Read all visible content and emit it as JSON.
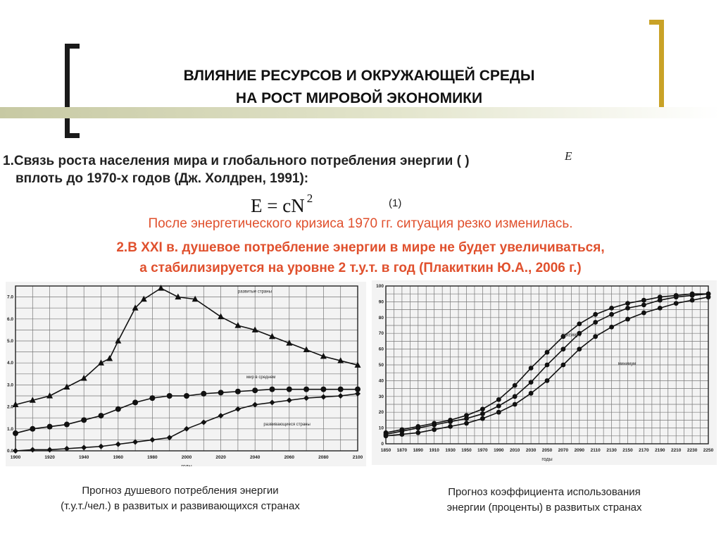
{
  "slide": {
    "title_line1": "ВЛИЯНИЕ РЕСУРСОВ И ОКРУЖАЮЩЕЙ СРЕДЫ",
    "title_line2": "НА РОСТ МИРОВОЙ ЭКОНОМИКИ",
    "point1_line1": "1.Связь роста населения мира и глобального потребления энергии (  )",
    "point1_line2": "вплоть до 1970-х годов (Дж. Холдрен, 1991):",
    "energy_var": "E",
    "formula_main": "E = cN",
    "formula_exp": "2",
    "formula_num": "(1)",
    "note_red": "После энергетического кризиса 1970 гг. ситуация резко изменилась.",
    "point2_line1": "2.В XXI в. душевое потребление энергии в мире не будет увеличиваться,",
    "point2_line2": "а стабилизируется на уровне 2 т.у.т. в год (Плакиткин Ю.А., 2006 г.)",
    "caption_left_line1": "Прогноз душевого потребления энергии",
    "caption_left_line2": "(т.у.т./чел.) в развитых и развивающихся странах",
    "caption_right_line1": "Прогноз коэффициента использования",
    "caption_right_line2": "энергии (проценты) в развитых странах",
    "bracket_left_color": "#1a1a1a",
    "bracket_right_color": "#c9a227",
    "red_color": "#e0502d"
  },
  "chart_data": [
    {
      "type": "line",
      "xlabel": "годы",
      "xlim": [
        1900,
        2100
      ],
      "ylim": [
        0,
        7.5
      ],
      "x_ticks": [
        1900,
        1920,
        1940,
        1960,
        1980,
        2000,
        2020,
        2040,
        2060,
        2080,
        2100
      ],
      "y_ticks": [
        0.0,
        1.0,
        2.0,
        3.0,
        4.0,
        5.0,
        6.0,
        7.0
      ],
      "grid": true,
      "series": [
        {
          "name": "развитые страны",
          "marker": "triangle",
          "x": [
            1900,
            1910,
            1920,
            1930,
            1940,
            1950,
            1955,
            1960,
            1970,
            1975,
            1985,
            1995,
            2005,
            2020,
            2030,
            2040,
            2050,
            2060,
            2070,
            2080,
            2090,
            2100
          ],
          "y": [
            2.1,
            2.3,
            2.5,
            2.9,
            3.3,
            4.0,
            4.2,
            5.0,
            6.5,
            6.9,
            7.4,
            7.0,
            6.9,
            6.1,
            5.7,
            5.5,
            5.2,
            4.9,
            4.6,
            4.3,
            4.1,
            3.9
          ]
        },
        {
          "name": "мир в среднем",
          "marker": "circle",
          "x": [
            1900,
            1910,
            1920,
            1930,
            1940,
            1950,
            1960,
            1970,
            1980,
            1990,
            2000,
            2010,
            2020,
            2030,
            2040,
            2050,
            2060,
            2070,
            2080,
            2090,
            2100
          ],
          "y": [
            0.8,
            1.0,
            1.1,
            1.2,
            1.4,
            1.6,
            1.9,
            2.2,
            2.4,
            2.5,
            2.5,
            2.6,
            2.65,
            2.7,
            2.75,
            2.8,
            2.8,
            2.8,
            2.8,
            2.8,
            2.8
          ]
        },
        {
          "name": "развивающиеся страны",
          "marker": "diamond",
          "x": [
            1900,
            1910,
            1920,
            1930,
            1940,
            1950,
            1960,
            1970,
            1980,
            1990,
            2000,
            2010,
            2020,
            2030,
            2040,
            2050,
            2060,
            2070,
            2080,
            2090,
            2100
          ],
          "y": [
            0.0,
            0.05,
            0.05,
            0.1,
            0.15,
            0.2,
            0.3,
            0.4,
            0.5,
            0.6,
            1.0,
            1.3,
            1.6,
            1.9,
            2.1,
            2.2,
            2.3,
            2.4,
            2.45,
            2.5,
            2.6
          ]
        }
      ]
    },
    {
      "type": "line",
      "xlabel": "годы",
      "xlim": [
        1850,
        2250
      ],
      "ylim": [
        0,
        100
      ],
      "x_ticks": [
        1850,
        1870,
        1890,
        1910,
        1930,
        1950,
        1970,
        1990,
        2010,
        2030,
        2050,
        2070,
        2090,
        2110,
        2130,
        2150,
        2170,
        2190,
        2210,
        2230,
        2250
      ],
      "y_ticks": [
        0,
        10,
        20,
        30,
        40,
        50,
        60,
        70,
        80,
        90,
        100
      ],
      "grid": true,
      "series": [
        {
          "name": "максимум",
          "marker": "circle",
          "x": [
            1850,
            1870,
            1890,
            1910,
            1930,
            1950,
            1970,
            1990,
            2010,
            2030,
            2050,
            2070,
            2090,
            2110,
            2130,
            2150,
            2170,
            2190,
            2210,
            2230,
            2250
          ],
          "y": [
            7,
            9,
            11,
            13,
            15,
            18,
            22,
            28,
            37,
            48,
            58,
            68,
            76,
            82,
            86,
            89,
            91,
            93,
            94,
            95,
            95
          ]
        },
        {
          "name": "",
          "marker": "circle",
          "x": [
            1850,
            1870,
            1890,
            1910,
            1930,
            1950,
            1970,
            1990,
            2010,
            2030,
            2050,
            2070,
            2090,
            2110,
            2130,
            2150,
            2170,
            2190,
            2210,
            2230,
            2250
          ],
          "y": [
            6,
            8,
            10,
            12,
            14,
            16,
            19,
            24,
            30,
            39,
            50,
            60,
            70,
            77,
            82,
            86,
            88,
            91,
            93,
            94,
            95
          ]
        },
        {
          "name": "минимум",
          "marker": "circle",
          "x": [
            1850,
            1870,
            1890,
            1910,
            1930,
            1950,
            1970,
            1990,
            2010,
            2030,
            2050,
            2070,
            2090,
            2110,
            2130,
            2150,
            2170,
            2190,
            2210,
            2230,
            2250
          ],
          "y": [
            5,
            6,
            7,
            9,
            11,
            13,
            16,
            20,
            25,
            32,
            40,
            50,
            60,
            68,
            74,
            79,
            83,
            86,
            89,
            91,
            93
          ]
        }
      ]
    }
  ]
}
